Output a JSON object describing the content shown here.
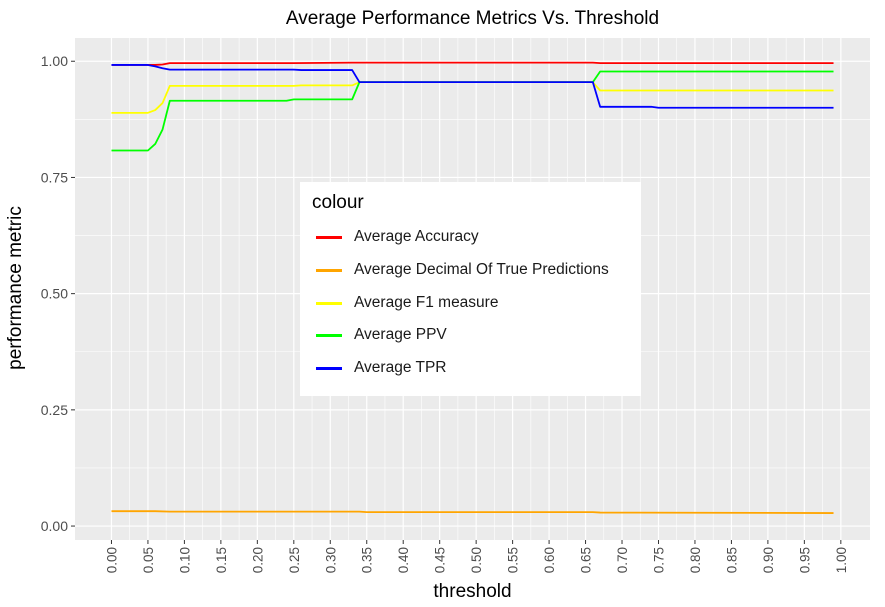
{
  "chart_data": {
    "type": "line",
    "title": "Average Performance Metrics Vs. Threshold",
    "xlabel": "threshold",
    "ylabel": "performance metric",
    "xlim": [
      -0.05,
      1.04
    ],
    "ylim": [
      -0.03,
      1.05
    ],
    "x_ticks": [
      "0.00",
      "0.05",
      "0.10",
      "0.15",
      "0.20",
      "0.25",
      "0.30",
      "0.35",
      "0.40",
      "0.45",
      "0.50",
      "0.55",
      "0.60",
      "0.65",
      "0.70",
      "0.75",
      "0.80",
      "0.85",
      "0.90",
      "0.95",
      "1.00"
    ],
    "y_ticks": [
      "0.00",
      "0.25",
      "0.50",
      "0.75",
      "1.00"
    ],
    "grid": true,
    "legend": {
      "title": "colour",
      "placement": "inside-center-left"
    },
    "series": [
      {
        "name": "Average Accuracy",
        "color": "#FF0000",
        "points": [
          [
            0.0,
            0.992
          ],
          [
            0.05,
            0.992
          ],
          [
            0.06,
            0.992
          ],
          [
            0.07,
            0.993
          ],
          [
            0.08,
            0.996
          ],
          [
            0.25,
            0.996
          ],
          [
            0.33,
            0.997
          ],
          [
            0.35,
            0.997
          ],
          [
            0.66,
            0.997
          ],
          [
            0.67,
            0.996
          ],
          [
            0.99,
            0.996
          ]
        ]
      },
      {
        "name": "Average Decimal Of True Predictions",
        "color": "#FFA500",
        "points": [
          [
            0.0,
            0.032
          ],
          [
            0.06,
            0.032
          ],
          [
            0.08,
            0.031
          ],
          [
            0.34,
            0.031
          ],
          [
            0.35,
            0.03
          ],
          [
            0.66,
            0.03
          ],
          [
            0.67,
            0.029
          ],
          [
            0.99,
            0.028
          ]
        ]
      },
      {
        "name": "Average F1 measure",
        "color": "#FFFF00",
        "points": [
          [
            0.0,
            0.889
          ],
          [
            0.05,
            0.889
          ],
          [
            0.06,
            0.895
          ],
          [
            0.07,
            0.91
          ],
          [
            0.08,
            0.947
          ],
          [
            0.25,
            0.947
          ],
          [
            0.26,
            0.948
          ],
          [
            0.33,
            0.948
          ],
          [
            0.34,
            0.955
          ],
          [
            0.66,
            0.955
          ],
          [
            0.67,
            0.937
          ],
          [
            0.99,
            0.937
          ]
        ]
      },
      {
        "name": "Average PPV",
        "color": "#00FF00",
        "points": [
          [
            0.0,
            0.808
          ],
          [
            0.05,
            0.808
          ],
          [
            0.06,
            0.822
          ],
          [
            0.07,
            0.853
          ],
          [
            0.08,
            0.915
          ],
          [
            0.24,
            0.915
          ],
          [
            0.25,
            0.918
          ],
          [
            0.33,
            0.918
          ],
          [
            0.34,
            0.955
          ],
          [
            0.66,
            0.955
          ],
          [
            0.67,
            0.978
          ],
          [
            0.99,
            0.978
          ]
        ]
      },
      {
        "name": "Average TPR",
        "color": "#0000FF",
        "points": [
          [
            0.0,
            0.992
          ],
          [
            0.05,
            0.992
          ],
          [
            0.06,
            0.989
          ],
          [
            0.07,
            0.985
          ],
          [
            0.08,
            0.982
          ],
          [
            0.25,
            0.982
          ],
          [
            0.26,
            0.981
          ],
          [
            0.33,
            0.981
          ],
          [
            0.34,
            0.955
          ],
          [
            0.66,
            0.955
          ],
          [
            0.67,
            0.902
          ],
          [
            0.74,
            0.902
          ],
          [
            0.75,
            0.9
          ],
          [
            0.99,
            0.9
          ]
        ]
      }
    ]
  }
}
